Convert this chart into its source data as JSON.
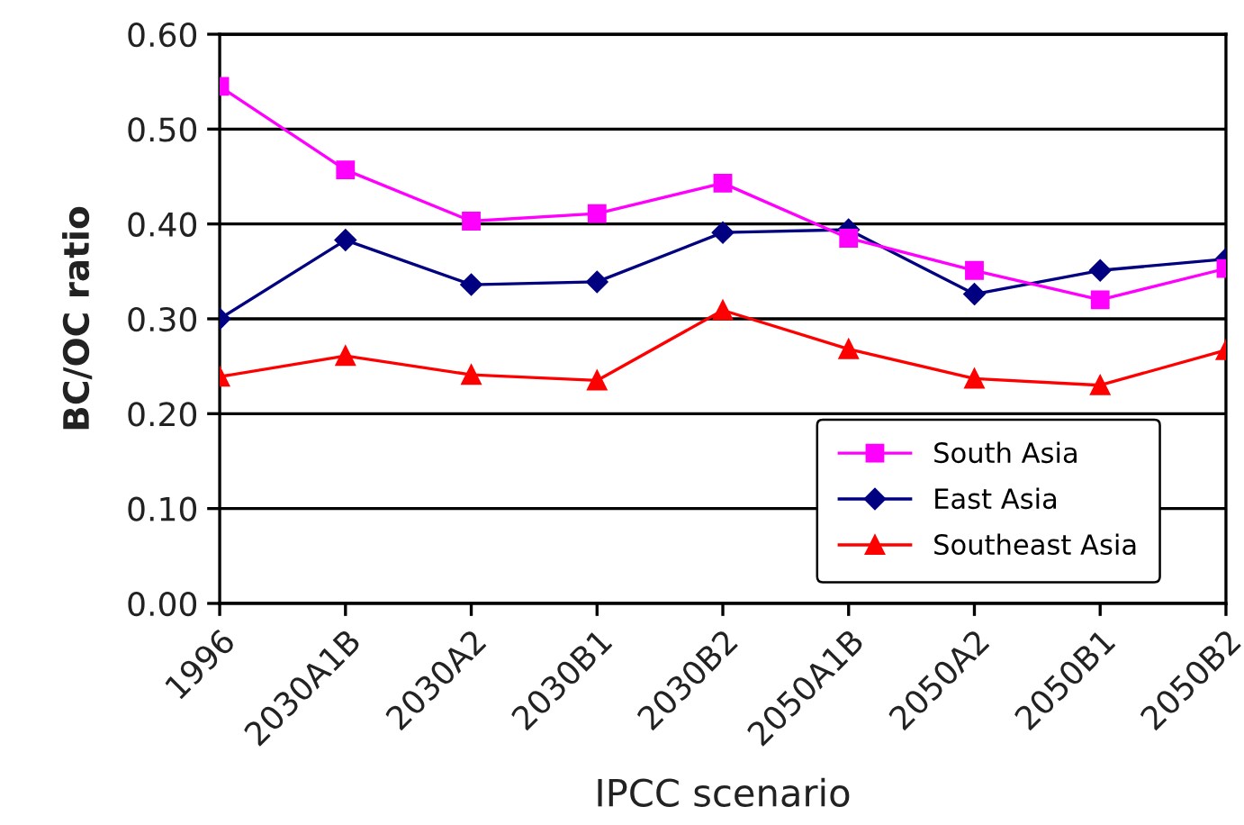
{
  "chart_data": {
    "type": "line",
    "xlabel": "IPCC scenario",
    "ylabel": "BC/OC ratio",
    "categories": [
      "1996",
      "2030A1B",
      "2030A2",
      "2030B1",
      "2030B2",
      "2050A1B",
      "2050A2",
      "2050B1",
      "2050B2"
    ],
    "series": [
      {
        "name": "South Asia",
        "color": "#ff00ff",
        "marker": "square",
        "values": [
          0.545,
          0.457,
          0.403,
          0.411,
          0.443,
          0.385,
          0.351,
          0.32,
          0.353
        ]
      },
      {
        "name": "East Asia",
        "color": "#000080",
        "marker": "diamond",
        "values": [
          0.3,
          0.383,
          0.336,
          0.339,
          0.391,
          0.394,
          0.326,
          0.351,
          0.363
        ]
      },
      {
        "name": "Southeast Asia",
        "color": "#ff0000",
        "marker": "triangle",
        "values": [
          0.239,
          0.261,
          0.241,
          0.235,
          0.309,
          0.268,
          0.237,
          0.23,
          0.267
        ]
      }
    ],
    "ylim": [
      0,
      0.6
    ],
    "yticks": [
      {
        "value": 0,
        "label": "0.00"
      },
      {
        "value": 0.1,
        "label": "0.10"
      },
      {
        "value": 0.2,
        "label": "0.20"
      },
      {
        "value": 0.3,
        "label": "0.30"
      },
      {
        "value": 0.4,
        "label": "0.40"
      },
      {
        "value": 0.5,
        "label": "0.50"
      },
      {
        "value": 0.6,
        "label": "0.60"
      }
    ],
    "grid": "y",
    "legend": "bottom right",
    "line_style": "solid"
  }
}
